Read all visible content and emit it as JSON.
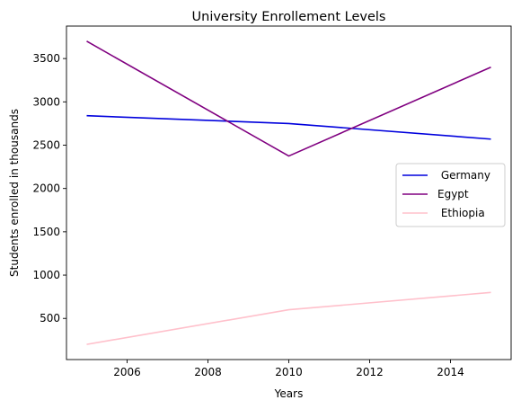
{
  "chart_data": {
    "type": "line",
    "title": "University Enrollement Levels",
    "xlabel": "Years",
    "ylabel": "Students enrolled in thousands",
    "x": [
      2005,
      2010,
      2015
    ],
    "xlim": [
      2004.5,
      2015.5
    ],
    "ylim": [
      25,
      3875
    ],
    "xticks": [
      2006,
      2008,
      2010,
      2012,
      2014
    ],
    "yticks": [
      500,
      1000,
      1500,
      2000,
      2500,
      3000,
      3500
    ],
    "grid": false,
    "legend_position": "center-right",
    "series": [
      {
        "name": " Germany",
        "values": [
          2840,
          2750,
          2570
        ],
        "color": "#0000dd"
      },
      {
        "name": "Egypt",
        "values": [
          3700,
          2375,
          3400
        ],
        "color": "#800080"
      },
      {
        "name": " Ethiopia",
        "values": [
          200,
          600,
          800
        ],
        "color": "#ffc0cb"
      }
    ]
  }
}
